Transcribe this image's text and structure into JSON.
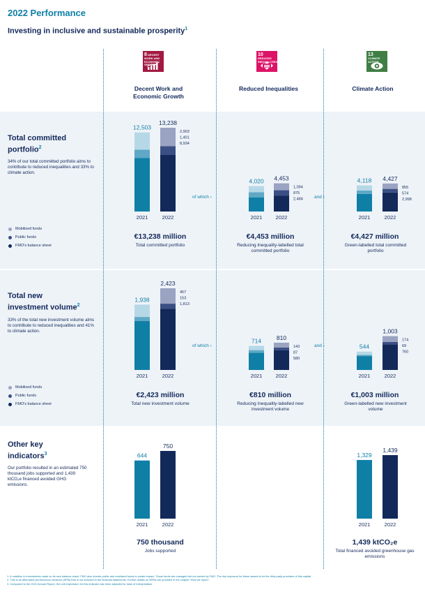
{
  "header": {
    "title": "2022 Performance",
    "subtitle": "Investing in inclusive and sustainable prosperity",
    "subtitle_note": "1"
  },
  "columns": [
    {
      "sdg_number": "8",
      "sdg_text": "DECENT WORK AND ECONOMIC GROWTH",
      "sdg_color": "#a21942",
      "sdg_icon": "growth-chart-icon",
      "heading_line1": "Decent Work and",
      "heading_line2": "Economic Growth"
    },
    {
      "sdg_number": "10",
      "sdg_text": "REDUCED INEQUALITIES",
      "sdg_color": "#dd1367",
      "sdg_icon": "equality-arrows-icon",
      "heading_line1": "Reduced Inequalities",
      "heading_line2": ""
    },
    {
      "sdg_number": "13",
      "sdg_text": "CLIMATE ACTION",
      "sdg_color": "#3f7e44",
      "sdg_icon": "eye-globe-icon",
      "heading_line1": "Climate Action",
      "heading_line2": ""
    }
  ],
  "sections": [
    {
      "title_line1": "Total committed",
      "title_line2": "portfolio",
      "note": "2",
      "description": "34% of our total committed portfolio aims to contribute to reduced inequalities and 33% to climate action.",
      "connector_1": "of which",
      "connector_2": "and",
      "summaries": [
        {
          "big": "€13,238 million",
          "caption": "Total committed portfolio"
        },
        {
          "big": "€4,453 million",
          "caption": "Reducing Inequality-labelled total committed portfolio"
        },
        {
          "big": "€4,427 million",
          "caption": "Green-labelled total committed portfolio"
        }
      ]
    },
    {
      "title_line1": "Total new",
      "title_line2": "investment volume",
      "note": "2",
      "description": "33% of the total new investment volume aims to contribute to reduced inequalities and 41% to climate action.",
      "connector_1": "of which",
      "connector_2": "and",
      "summaries": [
        {
          "big": "€2,423 million",
          "caption": "Total new investment volume"
        },
        {
          "big": "€810 million",
          "caption": "Reducing Inequality-labelled new investment volume"
        },
        {
          "big": "€1,003 million",
          "caption": "Green-labelled new investment volume"
        }
      ]
    },
    {
      "title_line1": "Other key",
      "title_line2": "indicators",
      "note": "3",
      "description": "Our portfolio resulted in an estimated 750 thousand jobs supported and 1,439 ktCO₂e financed avoided GHG emissions.",
      "summaries": [
        {
          "big": "750 thousand",
          "caption": "Jobs supported"
        },
        {
          "big": "1,439 ktCO₂e",
          "caption": "Total financed avoided greenhouse gas emissions"
        }
      ]
    }
  ],
  "legend": [
    {
      "label": "Mobilized funds",
      "color": "#9aa3c2"
    },
    {
      "label": "Public funds",
      "color": "#3b4f85"
    },
    {
      "label": "FMO's balance sheet",
      "color": "#13295a"
    }
  ],
  "colors": {
    "mobilized_2021": "#b6d8e6",
    "public_2021": "#5fa8c6",
    "balance_2021": "#0f7fa6",
    "mobilized_2022": "#9aa3c2",
    "public_2022": "#3b4f85",
    "balance_2022": "#13295a",
    "accent": "#0f7fa6"
  },
  "chart_data": [
    {
      "type": "bar",
      "id": "committed-decent-work",
      "categories": [
        "2021",
        "2022"
      ],
      "totals": [
        12503,
        13238
      ],
      "series": [
        {
          "name": "FMO's balance sheet",
          "values_2022": 8934
        },
        {
          "name": "Public funds",
          "values_2022": 1401
        },
        {
          "name": "Mobilized funds",
          "values_2022": 2903
        }
      ],
      "labels_2022": [
        "2,903",
        "1,401",
        "8,934"
      ],
      "total_labels": [
        "12,503",
        "13,238"
      ]
    },
    {
      "type": "bar",
      "id": "committed-inequalities",
      "categories": [
        "2021",
        "2022"
      ],
      "totals": [
        4020,
        4453
      ],
      "series": [
        {
          "name": "FMO's balance sheet",
          "values_2022": 2484
        },
        {
          "name": "Public funds",
          "values_2022": 875
        },
        {
          "name": "Mobilized funds",
          "values_2022": 1094
        }
      ],
      "labels_2022": [
        "1,094",
        "875",
        "2,484"
      ],
      "total_labels": [
        "4,020",
        "4,453"
      ]
    },
    {
      "type": "bar",
      "id": "committed-climate",
      "categories": [
        "2021",
        "2022"
      ],
      "totals": [
        4118,
        4427
      ],
      "series": [
        {
          "name": "FMO's balance sheet",
          "values_2022": 2998
        },
        {
          "name": "Public funds",
          "values_2022": 574
        },
        {
          "name": "Mobilized funds",
          "values_2022": 855
        }
      ],
      "labels_2022": [
        "855",
        "574",
        "2,998"
      ],
      "total_labels": [
        "4,118",
        "4,427"
      ]
    },
    {
      "type": "bar",
      "id": "new-decent-work",
      "categories": [
        "2021",
        "2022"
      ],
      "totals": [
        1938,
        2423
      ],
      "series": [
        {
          "name": "FMO's balance sheet",
          "values_2022": 1813
        },
        {
          "name": "Public funds",
          "values_2022": 153
        },
        {
          "name": "Mobilized funds",
          "values_2022": 457
        }
      ],
      "labels_2022": [
        "457",
        "153",
        "1,813"
      ],
      "total_labels": [
        "1,938",
        "2,423"
      ]
    },
    {
      "type": "bar",
      "id": "new-inequalities",
      "categories": [
        "2021",
        "2022"
      ],
      "totals": [
        714,
        810
      ],
      "series": [
        {
          "name": "FMO's balance sheet",
          "values_2022": 580
        },
        {
          "name": "Public funds",
          "values_2022": 87
        },
        {
          "name": "Mobilized funds",
          "values_2022": 143
        }
      ],
      "labels_2022": [
        "143",
        "87",
        "580"
      ],
      "total_labels": [
        "714",
        "810"
      ]
    },
    {
      "type": "bar",
      "id": "new-climate",
      "categories": [
        "2021",
        "2022"
      ],
      "totals": [
        544,
        1003
      ],
      "series": [
        {
          "name": "FMO's balance sheet",
          "values_2022": 760
        },
        {
          "name": "Public funds",
          "values_2022": 69
        },
        {
          "name": "Mobilized funds",
          "values_2022": 174
        }
      ],
      "labels_2022": [
        "174",
        "69",
        "760"
      ],
      "total_labels": [
        "544",
        "1,003"
      ]
    },
    {
      "type": "bar",
      "id": "jobs",
      "categories": [
        "2021",
        "2022"
      ],
      "totals": [
        644,
        750
      ],
      "total_labels": [
        "644",
        "750"
      ]
    },
    {
      "type": "bar",
      "id": "emissions",
      "categories": [
        "2021",
        "2022"
      ],
      "totals": [
        1329,
        1439
      ],
      "total_labels": [
        "1,329",
        "1,439"
      ]
    }
  ],
  "footnotes": [
    "1.  In addition to investments made on its own balance sheet, FMO also invests public and mobilized funds to create impact. These funds are managed but not owned by FMO. The risk exposure for these assets is for the third-party providers of this capital.",
    "2.  This is an alternative performance measure (APM) that is not included in the financial statements. Further details on APMs are provided in the chapter 'How we report'.",
    "3.  Compared to the 2021 Annual Report, the unit expression for this indicator has been adjusted for ease of interpretation."
  ]
}
